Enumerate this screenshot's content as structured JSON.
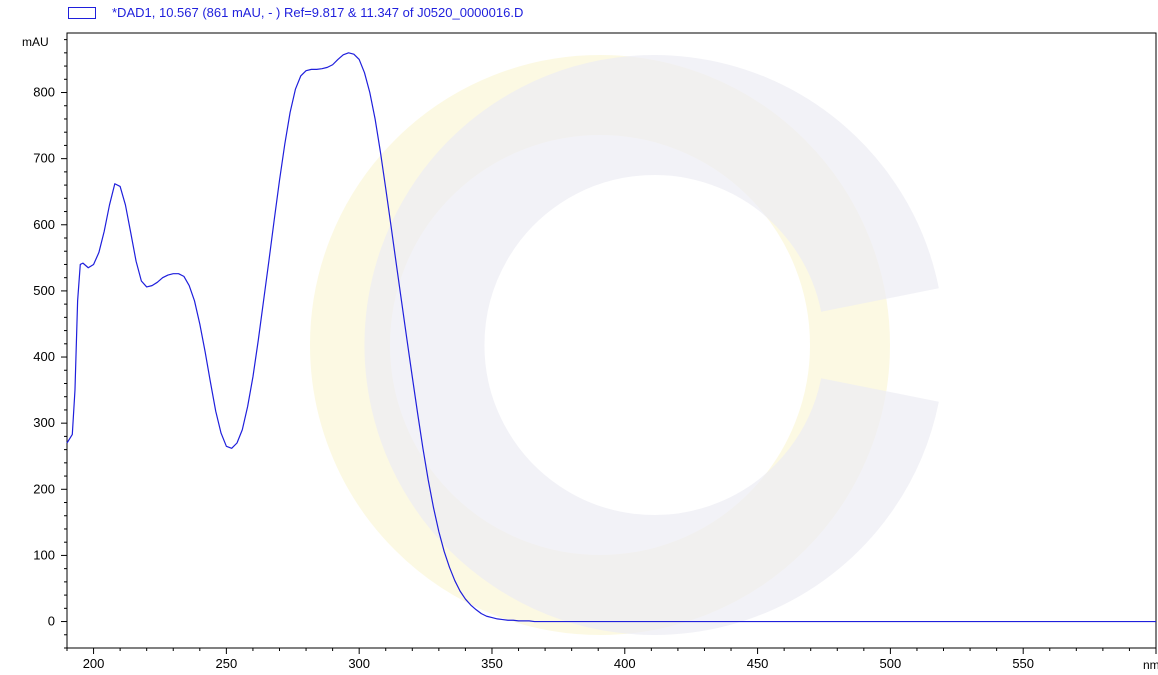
{
  "chart_data": {
    "type": "line",
    "legend": "*DAD1, 10.567 (861 mAU, - ) Ref=9.817 & 11.347 of J0520_0000016.D",
    "ylabel": "mAU",
    "xlabel": "nm",
    "xlim": [
      190,
      600
    ],
    "ylim": [
      -40,
      890
    ],
    "x_ticks": [
      "200",
      "250",
      "300",
      "350",
      "400",
      "450",
      "500",
      "550"
    ],
    "y_ticks": [
      "0",
      "100",
      "200",
      "300",
      "400",
      "500",
      "600",
      "700",
      "800"
    ],
    "colors": {
      "series": "#1f1fdc",
      "axis": "#000000",
      "watermark_light": "#fbf8dc",
      "watermark_dark": "#ededf3"
    },
    "series": [
      {
        "x": [
          190,
          192,
          193,
          194,
          195,
          196,
          198,
          200,
          202,
          204,
          206,
          208,
          210,
          212,
          214,
          216,
          218,
          220,
          222,
          224,
          226,
          228,
          230,
          232,
          234,
          236,
          238,
          240,
          242,
          244,
          246,
          248,
          250,
          252,
          254,
          256,
          258,
          260,
          262,
          264,
          266,
          268,
          270,
          272,
          274,
          276,
          278,
          280,
          282,
          284,
          286,
          288,
          290,
          292,
          294,
          296,
          298,
          300,
          302,
          304,
          306,
          308,
          310,
          312,
          314,
          316,
          318,
          320,
          322,
          324,
          326,
          328,
          330,
          332,
          334,
          336,
          338,
          340,
          342,
          344,
          346,
          348,
          350,
          352,
          354,
          356,
          358,
          360,
          362,
          364,
          366,
          368,
          370,
          372,
          374,
          376,
          378,
          380,
          383,
          386,
          390,
          395,
          400,
          410,
          420,
          440,
          460,
          500,
          550,
          600
        ],
        "y": [
          270,
          283,
          350,
          485,
          540,
          542,
          535,
          540,
          558,
          590,
          630,
          662,
          658,
          630,
          588,
          545,
          515,
          506,
          508,
          513,
          520,
          524,
          526,
          526,
          522,
          508,
          485,
          450,
          408,
          362,
          318,
          285,
          265,
          262,
          270,
          290,
          325,
          370,
          425,
          485,
          545,
          607,
          667,
          722,
          770,
          805,
          825,
          833,
          835,
          835,
          836,
          838,
          842,
          850,
          857,
          860,
          858,
          850,
          830,
          800,
          760,
          710,
          655,
          598,
          540,
          483,
          426,
          370,
          315,
          262,
          214,
          172,
          136,
          106,
          82,
          62,
          46,
          34,
          25,
          18,
          12,
          8,
          6,
          4,
          3,
          2,
          2,
          1,
          1,
          1,
          0,
          0,
          0,
          0,
          0,
          0,
          0,
          0,
          0,
          0,
          0,
          0,
          0,
          0,
          0,
          0,
          0,
          0,
          0,
          0
        ]
      }
    ]
  }
}
